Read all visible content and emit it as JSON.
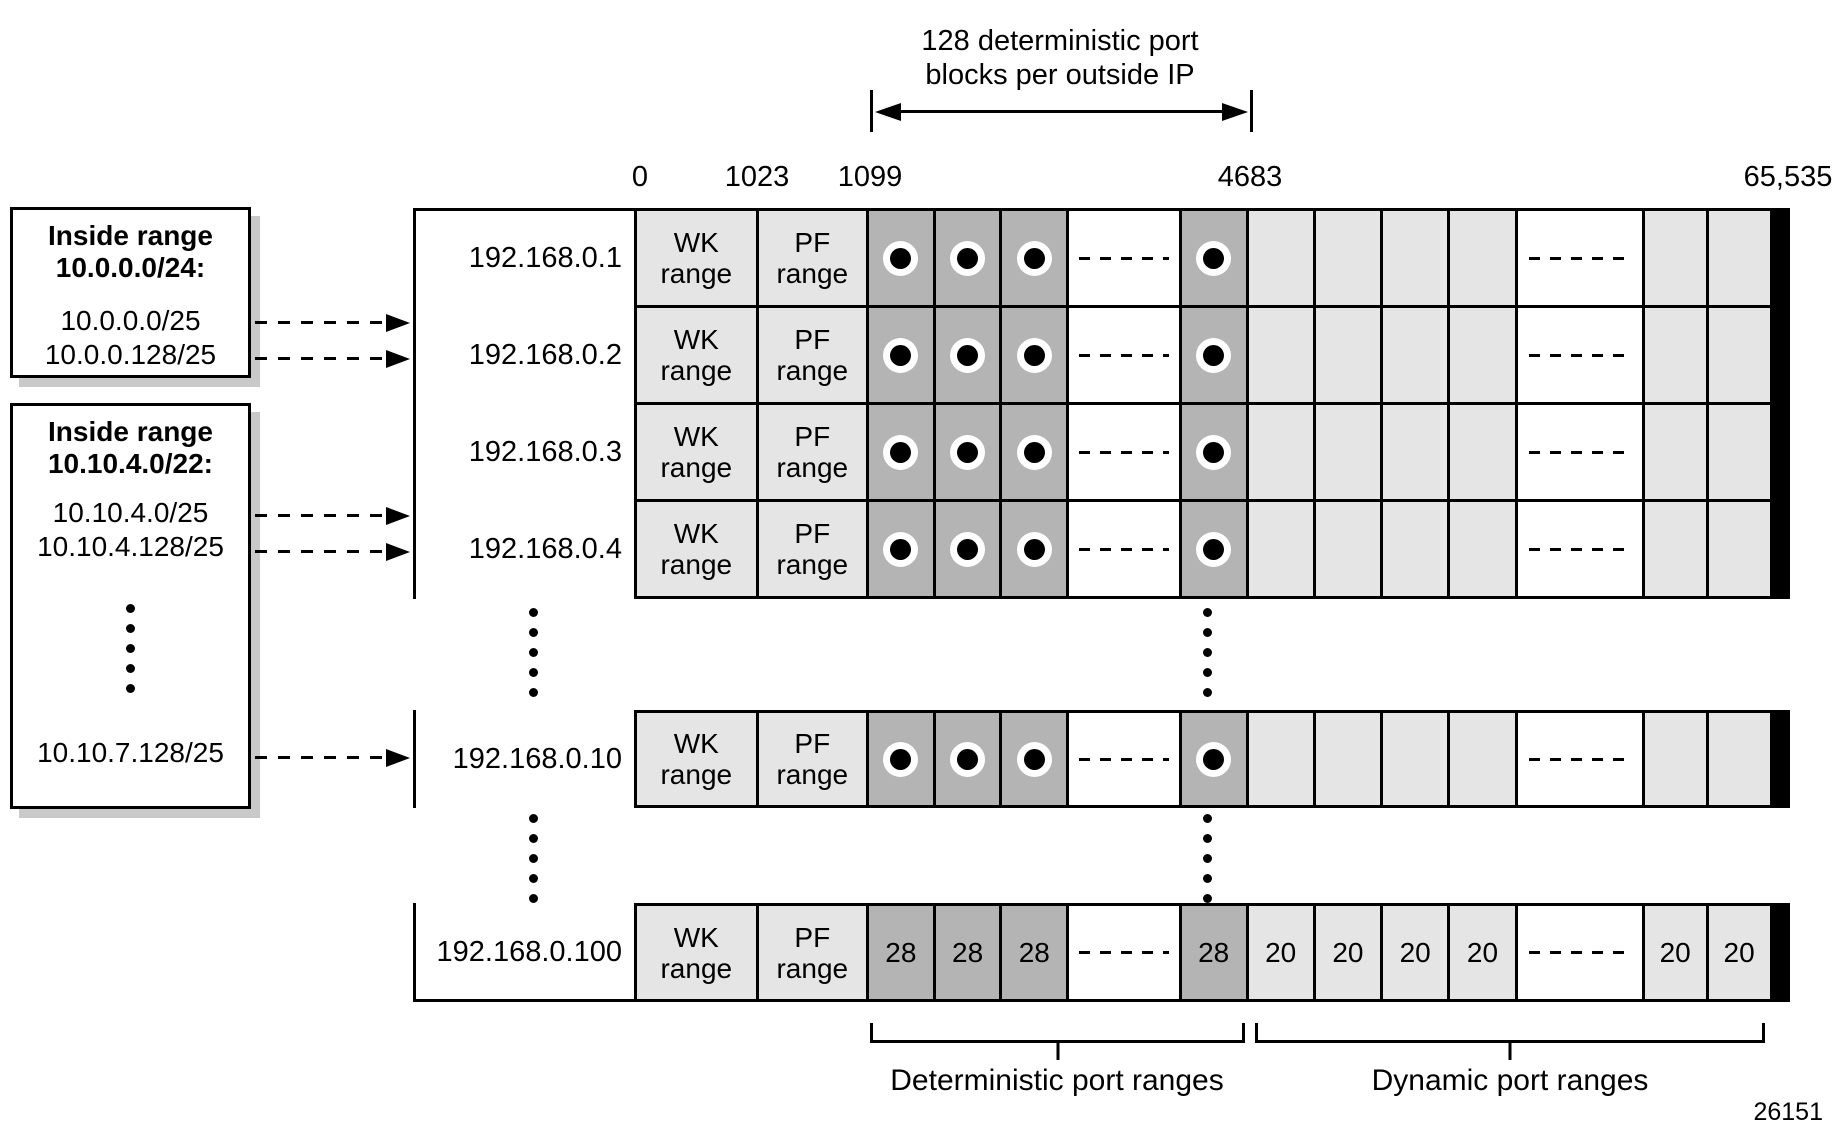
{
  "figure": {
    "annotation": {
      "line1": "128 deterministic port",
      "line2": "blocks per outside IP"
    },
    "axis_labels": {
      "zero": "0",
      "wk_end": "1023",
      "det_start": "1099",
      "det_end": "4683",
      "max": "65,535"
    },
    "inside_box1": {
      "title_line1": "Inside range",
      "title_line2": "10.0.0.0/24:",
      "entry1": "10.0.0.0/25",
      "entry2": "10.0.0.128/25"
    },
    "inside_box2": {
      "title_line1": "Inside range",
      "title_line2": "10.10.4.0/22:",
      "entry1": "10.10.4.0/25",
      "entry2": "10.10.4.128/25",
      "entry_last": "10.10.7.128/25"
    },
    "cell_labels": {
      "wk": "WK\nrange",
      "pf": "PF\nrange"
    },
    "rows_main": [
      {
        "ip": "192.168.0.1"
      },
      {
        "ip": "192.168.0.2"
      },
      {
        "ip": "192.168.0.3"
      },
      {
        "ip": "192.168.0.4"
      }
    ],
    "row_10": {
      "ip": "192.168.0.10"
    },
    "row_100": {
      "ip": "192.168.0.100",
      "det_values": [
        "28",
        "28",
        "28",
        "28"
      ],
      "dyn_values": [
        "20",
        "20",
        "20",
        "20",
        "20",
        "20"
      ]
    },
    "braces": {
      "deterministic": "Deterministic port ranges",
      "dynamic": "Dynamic port ranges"
    },
    "figure_number": "26151"
  }
}
